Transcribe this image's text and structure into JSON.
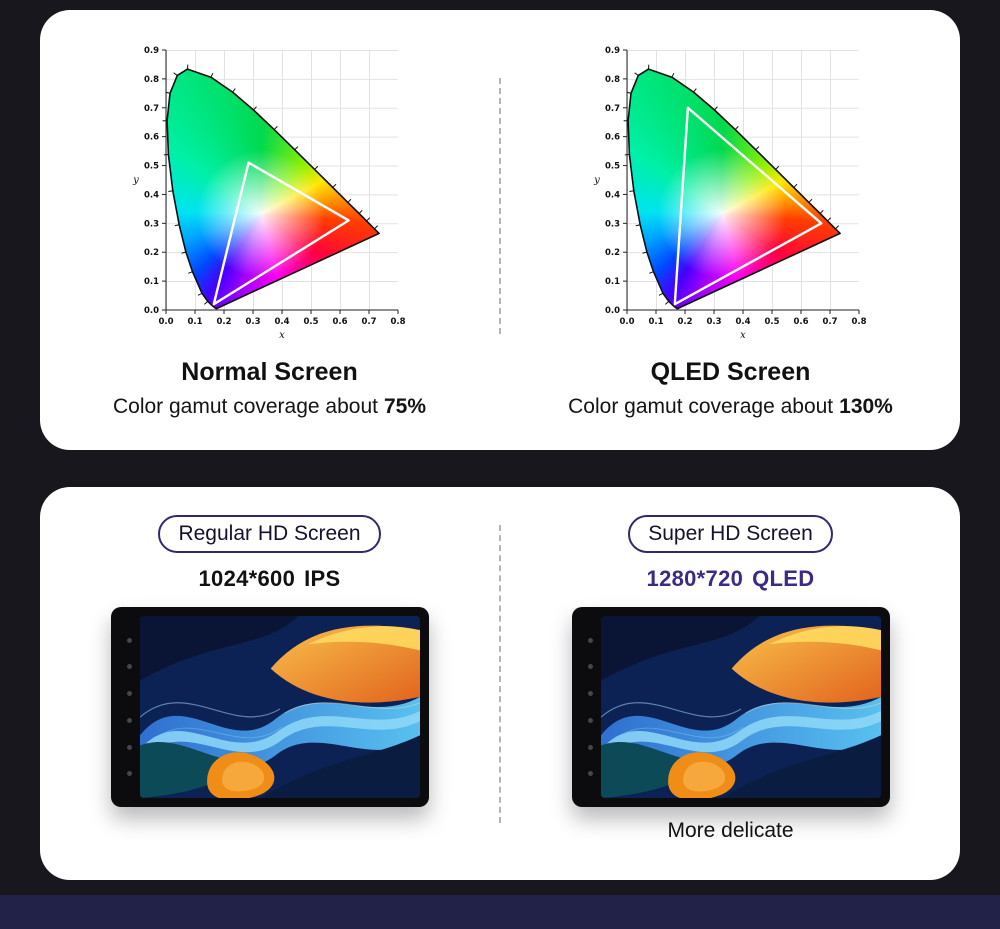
{
  "colors": {
    "background": "#17171d",
    "card": "#ffffff",
    "accent_purple": "#3d2a86",
    "badge_border": "#35276f",
    "divider": "#b5b5b5",
    "footer_band": "#222248"
  },
  "icons": {
    "bezel_buttons": "device-control-button-dots"
  },
  "gamut_section": {
    "left": {
      "title": "Normal Screen",
      "caption": "Color gamut coverage about",
      "coverage": "75%"
    },
    "right": {
      "title": "QLED Screen",
      "caption": "Color gamut coverage about",
      "coverage": "130%"
    }
  },
  "screen_section": {
    "left": {
      "badge": "Regular HD Screen",
      "resolution": "1024*600",
      "panel": "IPS"
    },
    "right": {
      "badge": "Super HD Screen",
      "resolution": "1280*720",
      "panel": "QLED",
      "note": "More delicate"
    }
  },
  "chart_data": [
    {
      "type": "area",
      "title": "Normal Screen",
      "subtitle": "CIE 1931 chromaticity diagram with display gamut triangle",
      "xlabel": "x",
      "ylabel": "y",
      "xlim": [
        0,
        0.8
      ],
      "ylim": [
        0,
        0.9
      ],
      "x_ticks": [
        0,
        0.1,
        0.2,
        0.3,
        0.4,
        0.5,
        0.6,
        0.7,
        0.8
      ],
      "y_ticks": [
        0,
        0.1,
        0.2,
        0.3,
        0.4,
        0.5,
        0.6,
        0.7,
        0.8,
        0.9
      ],
      "grid": true,
      "legend": "none",
      "coverage": "75%",
      "gamut_triangle": [
        [
          0.165,
          0.02
        ],
        [
          0.285,
          0.51
        ],
        [
          0.63,
          0.31
        ]
      ],
      "spectral_locus": [
        [
          0.1741,
          0.005
        ],
        [
          0.1726,
          0.0048
        ],
        [
          0.1644,
          0.0109
        ],
        [
          0.144,
          0.0297
        ],
        [
          0.1241,
          0.0578
        ],
        [
          0.0913,
          0.1327
        ],
        [
          0.0687,
          0.2007
        ],
        [
          0.0454,
          0.295
        ],
        [
          0.0235,
          0.4127
        ],
        [
          0.0082,
          0.5384
        ],
        [
          0.0039,
          0.6548
        ],
        [
          0.0139,
          0.7502
        ],
        [
          0.0389,
          0.812
        ],
        [
          0.0743,
          0.8338
        ],
        [
          0.1547,
          0.8059
        ],
        [
          0.2296,
          0.7543
        ],
        [
          0.3016,
          0.6923
        ],
        [
          0.3731,
          0.6245
        ],
        [
          0.4441,
          0.5547
        ],
        [
          0.5125,
          0.4866
        ],
        [
          0.5752,
          0.4242
        ],
        [
          0.627,
          0.3725
        ],
        [
          0.6658,
          0.334
        ],
        [
          0.6915,
          0.3083
        ],
        [
          0.719,
          0.2809
        ],
        [
          0.7347,
          0.2653
        ]
      ]
    },
    {
      "type": "area",
      "title": "QLED Screen",
      "subtitle": "CIE 1931 chromaticity diagram with display gamut triangle",
      "xlabel": "x",
      "ylabel": "y",
      "xlim": [
        0,
        0.8
      ],
      "ylim": [
        0,
        0.9
      ],
      "x_ticks": [
        0,
        0.1,
        0.2,
        0.3,
        0.4,
        0.5,
        0.6,
        0.7,
        0.8
      ],
      "y_ticks": [
        0,
        0.1,
        0.2,
        0.3,
        0.4,
        0.5,
        0.6,
        0.7,
        0.8,
        0.9
      ],
      "grid": true,
      "legend": "none",
      "coverage": "130%",
      "gamut_triangle": [
        [
          0.165,
          0.02
        ],
        [
          0.21,
          0.7
        ],
        [
          0.67,
          0.3
        ]
      ]
    }
  ]
}
